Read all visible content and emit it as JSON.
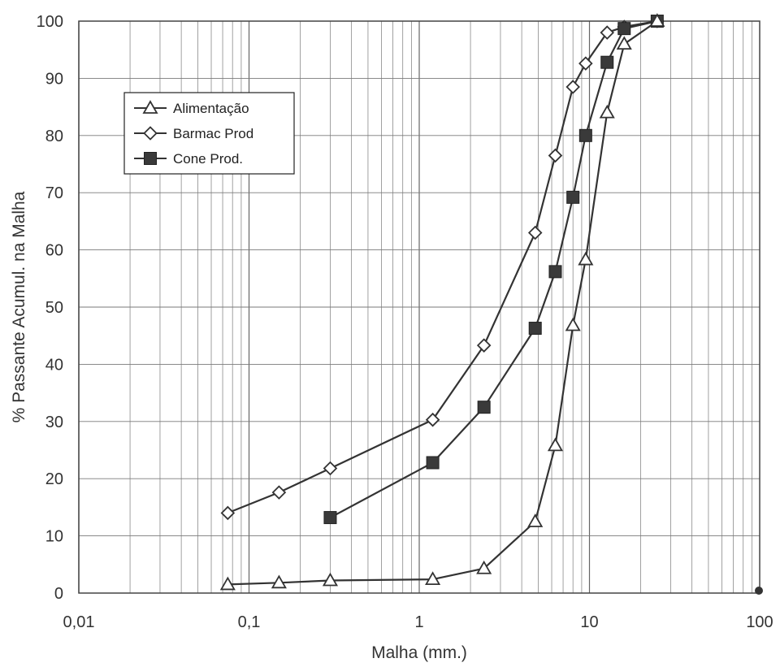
{
  "chart_data": {
    "type": "line",
    "xscale": "log",
    "xlabel": "Malha (mm.)",
    "ylabel": "% Passante Acumul. na Malha",
    "xlim": [
      0.01,
      100
    ],
    "ylim": [
      0,
      100
    ],
    "grid": true,
    "legend_position": "top-left",
    "x_tick_labels": [
      "0,01",
      "0,1",
      "1",
      "10",
      "100"
    ],
    "y_tick_labels": [
      "0",
      "10",
      "20",
      "30",
      "40",
      "50",
      "60",
      "70",
      "80",
      "90",
      "100"
    ],
    "series": [
      {
        "name": "Alimentação",
        "marker": "triangle-open",
        "x": [
          0.075,
          0.15,
          0.3,
          1.2,
          2.4,
          4.8,
          6.3,
          8.0,
          9.5,
          12.7,
          16.0,
          25.0
        ],
        "y": [
          1.5,
          1.8,
          2.2,
          2.4,
          4.3,
          12.5,
          25.8,
          46.8,
          58.3,
          84.0,
          96.0,
          100.0
        ]
      },
      {
        "name": "Barmac Prod",
        "marker": "diamond-open",
        "x": [
          0.075,
          0.15,
          0.3,
          1.2,
          2.4,
          4.8,
          6.3,
          8.0,
          9.5,
          12.7,
          16.0,
          25.0
        ],
        "y": [
          14.0,
          17.6,
          21.8,
          30.3,
          43.3,
          63.0,
          76.5,
          88.5,
          92.6,
          98.0,
          99.0,
          100.0
        ]
      },
      {
        "name": "Cone Prod.",
        "marker": "square-filled",
        "x": [
          0.3,
          1.2,
          2.4,
          4.8,
          6.3,
          8.0,
          9.5,
          12.7,
          16.0,
          25.0
        ],
        "y": [
          13.2,
          22.8,
          32.5,
          46.3,
          56.2,
          69.2,
          80.0,
          92.8,
          98.7,
          100.0
        ]
      }
    ]
  }
}
